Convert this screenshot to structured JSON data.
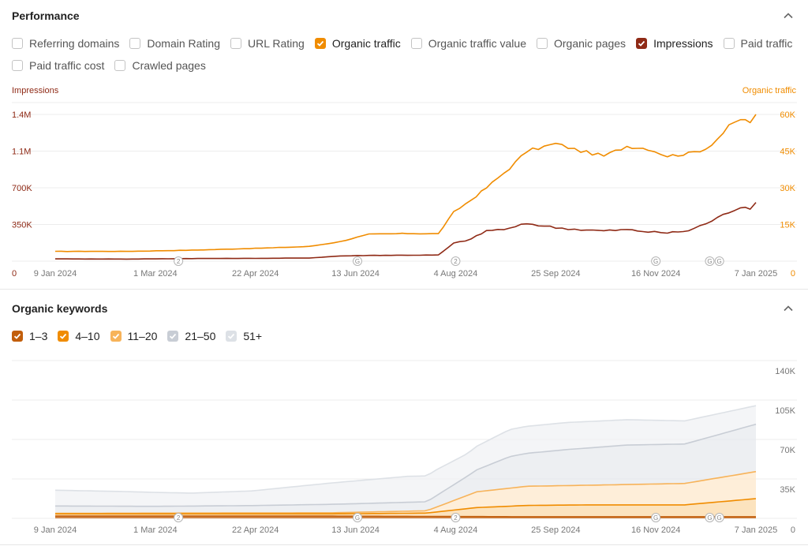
{
  "performance": {
    "title": "Performance",
    "checkboxes_row1": [
      {
        "label": "Referring domains",
        "checked": false,
        "color": ""
      },
      {
        "label": "Domain Rating",
        "checked": false,
        "color": ""
      },
      {
        "label": "URL Rating",
        "checked": false,
        "color": ""
      },
      {
        "label": "Organic traffic",
        "checked": true,
        "color": "#f08c00"
      },
      {
        "label": "Organic traffic value",
        "checked": false,
        "color": ""
      },
      {
        "label": "Organic pages",
        "checked": false,
        "color": ""
      },
      {
        "label": "Impressions",
        "checked": true,
        "color": "#8f2a16"
      },
      {
        "label": "Paid traffic",
        "checked": false,
        "color": ""
      }
    ],
    "checkboxes_row2": [
      {
        "label": "Paid traffic cost",
        "checked": false,
        "color": ""
      },
      {
        "label": "Crawled pages",
        "checked": false,
        "color": ""
      }
    ],
    "left_axis_title": "Impressions",
    "right_axis_title": "Organic traffic"
  },
  "keywords": {
    "title": "Organic keywords",
    "checkboxes": [
      {
        "label": "1–3",
        "checked": true,
        "color": "#c25e0b"
      },
      {
        "label": "4–10",
        "checked": true,
        "color": "#f08c00"
      },
      {
        "label": "11–20",
        "checked": true,
        "color": "#f7b35a"
      },
      {
        "label": "21–50",
        "checked": true,
        "color": "#c8cdd5"
      },
      {
        "label": "51+",
        "checked": true,
        "color": "#dde1e6"
      }
    ]
  },
  "colors": {
    "impressions": "#8f2a16",
    "organic_traffic": "#f08c00",
    "grid": "#ececec",
    "axis_text": "#777777"
  },
  "icons": {
    "collapse": "chevron-up-icon",
    "checked": "checkmark-icon",
    "google_update": "google-g-icon",
    "annotation_count": "annotation-badge"
  },
  "chart_data": [
    {
      "type": "line",
      "title": "",
      "x_ticks": [
        "9 Jan 2024",
        "1 Mar 2024",
        "22 Apr 2024",
        "13 Jun 2024",
        "4 Aug 2024",
        "25 Sep 2024",
        "16 Nov 2024",
        "7 Jan 2025"
      ],
      "x_range": [
        "2024-01-09",
        "2025-01-07"
      ],
      "y_left": {
        "label": "Impressions",
        "ticks": [
          "0",
          "350K",
          "700K",
          "1.1M",
          "1.4M"
        ],
        "range": [
          0,
          1400000
        ]
      },
      "y_right": {
        "label": "Organic traffic",
        "ticks": [
          "0",
          "15K",
          "30K",
          "45K",
          "60K"
        ],
        "range": [
          0,
          60000
        ]
      },
      "annotations": [
        {
          "date": "2024-03-13",
          "badge": "2"
        },
        {
          "date": "2024-06-14",
          "badge": "G"
        },
        {
          "date": "2024-08-04",
          "badge": "2"
        },
        {
          "date": "2024-11-16",
          "badge": "G"
        },
        {
          "date": "2024-12-14",
          "badge": "G"
        },
        {
          "date": "2024-12-19",
          "badge": "G"
        }
      ],
      "series": [
        {
          "name": "Organic traffic",
          "axis": "right",
          "points": [
            [
              "2024-01-09",
              4000
            ],
            [
              "2024-02-15",
              4000
            ],
            [
              "2024-03-20",
              4500
            ],
            [
              "2024-04-25",
              5300
            ],
            [
              "2024-05-20",
              6000
            ],
            [
              "2024-06-05",
              8000
            ],
            [
              "2024-06-20",
              11000
            ],
            [
              "2024-07-10",
              11300
            ],
            [
              "2024-07-26",
              11200
            ],
            [
              "2024-08-03",
              20000
            ],
            [
              "2024-08-12",
              25000
            ],
            [
              "2024-08-20",
              30000
            ],
            [
              "2024-09-01",
              38000
            ],
            [
              "2024-09-10",
              45000
            ],
            [
              "2024-09-25",
              48000
            ],
            [
              "2024-10-08",
              45000
            ],
            [
              "2024-10-20",
              43000
            ],
            [
              "2024-11-01",
              47000
            ],
            [
              "2024-11-12",
              46000
            ],
            [
              "2024-11-22",
              43000
            ],
            [
              "2024-12-03",
              44000
            ],
            [
              "2024-12-12",
              46000
            ],
            [
              "2024-12-18",
              50000
            ],
            [
              "2024-12-24",
              55000
            ],
            [
              "2024-12-30",
              58000
            ],
            [
              "2025-01-04",
              57000
            ],
            [
              "2025-01-07",
              60000
            ]
          ]
        },
        {
          "name": "Impressions",
          "axis": "left",
          "points": [
            [
              "2024-01-09",
              22000
            ],
            [
              "2024-02-15",
              20000
            ],
            [
              "2024-03-20",
              25000
            ],
            [
              "2024-04-25",
              27000
            ],
            [
              "2024-05-20",
              30000
            ],
            [
              "2024-06-05",
              50000
            ],
            [
              "2024-06-20",
              55000
            ],
            [
              "2024-07-10",
              57000
            ],
            [
              "2024-07-26",
              58000
            ],
            [
              "2024-08-03",
              170000
            ],
            [
              "2024-08-12",
              210000
            ],
            [
              "2024-08-20",
              290000
            ],
            [
              "2024-09-01",
              310000
            ],
            [
              "2024-09-10",
              360000
            ],
            [
              "2024-09-25",
              320000
            ],
            [
              "2024-10-08",
              300000
            ],
            [
              "2024-10-20",
              290000
            ],
            [
              "2024-11-01",
              300000
            ],
            [
              "2024-11-12",
              280000
            ],
            [
              "2024-11-22",
              270000
            ],
            [
              "2024-12-03",
              290000
            ],
            [
              "2024-12-12",
              360000
            ],
            [
              "2024-12-18",
              410000
            ],
            [
              "2024-12-24",
              470000
            ],
            [
              "2024-12-30",
              520000
            ],
            [
              "2025-01-04",
              510000
            ],
            [
              "2025-01-07",
              560000
            ]
          ]
        }
      ]
    },
    {
      "type": "area",
      "title": "",
      "stacked": true,
      "x_ticks": [
        "9 Jan 2024",
        "1 Mar 2024",
        "22 Apr 2024",
        "13 Jun 2024",
        "4 Aug 2024",
        "25 Sep 2024",
        "16 Nov 2024",
        "7 Jan 2025"
      ],
      "x_range": [
        "2024-01-09",
        "2025-01-07"
      ],
      "y_right": {
        "ticks": [
          "0",
          "35K",
          "70K",
          "105K",
          "140K"
        ],
        "range": [
          0,
          140000
        ]
      },
      "annotations": [
        {
          "date": "2024-03-13",
          "badge": "2"
        },
        {
          "date": "2024-06-14",
          "badge": "G"
        },
        {
          "date": "2024-08-04",
          "badge": "2"
        },
        {
          "date": "2024-11-16",
          "badge": "G"
        },
        {
          "date": "2024-12-14",
          "badge": "G"
        },
        {
          "date": "2024-12-19",
          "badge": "G"
        }
      ],
      "series": [
        {
          "name": "1–3",
          "points": [
            [
              "2024-01-09",
              2000
            ],
            [
              "2024-06-01",
              2000
            ],
            [
              "2024-09-01",
              1500
            ],
            [
              "2025-01-07",
              1500
            ]
          ]
        },
        {
          "name": "4–10",
          "points": [
            [
              "2024-01-09",
              2000
            ],
            [
              "2024-06-01",
              2000
            ],
            [
              "2024-07-20",
              3000
            ],
            [
              "2024-08-15",
              8000
            ],
            [
              "2024-09-10",
              10000
            ],
            [
              "2024-10-15",
              10500
            ],
            [
              "2024-12-01",
              10500
            ],
            [
              "2025-01-07",
              16000
            ]
          ]
        },
        {
          "name": "11–20",
          "points": [
            [
              "2024-01-09",
              500
            ],
            [
              "2024-06-01",
              1000
            ],
            [
              "2024-07-20",
              2000
            ],
            [
              "2024-08-15",
              14000
            ],
            [
              "2024-09-10",
              17000
            ],
            [
              "2024-10-15",
              17500
            ],
            [
              "2024-12-01",
              19000
            ],
            [
              "2025-01-07",
              24000
            ]
          ]
        },
        {
          "name": "21–50",
          "points": [
            [
              "2024-01-09",
              6500
            ],
            [
              "2024-03-01",
              6000
            ],
            [
              "2024-04-20",
              6500
            ],
            [
              "2024-06-01",
              7500
            ],
            [
              "2024-07-20",
              8000
            ],
            [
              "2024-08-10",
              17000
            ],
            [
              "2024-09-01",
              28000
            ],
            [
              "2024-10-01",
              32000
            ],
            [
              "2024-11-01",
              35000
            ],
            [
              "2024-12-01",
              35000
            ],
            [
              "2025-01-07",
              42000
            ]
          ]
        },
        {
          "name": "51+",
          "points": [
            [
              "2024-01-09",
              14000
            ],
            [
              "2024-02-15",
              13000
            ],
            [
              "2024-03-20",
              11500
            ],
            [
              "2024-04-20",
              13000
            ],
            [
              "2024-06-01",
              19000
            ],
            [
              "2024-07-10",
              23000
            ],
            [
              "2024-07-25",
              23000
            ],
            [
              "2024-08-10",
              20000
            ],
            [
              "2024-09-01",
              24000
            ],
            [
              "2024-10-01",
              24000
            ],
            [
              "2024-11-01",
              22500
            ],
            [
              "2024-12-01",
              20500
            ],
            [
              "2025-01-07",
              16500
            ]
          ]
        }
      ]
    }
  ]
}
